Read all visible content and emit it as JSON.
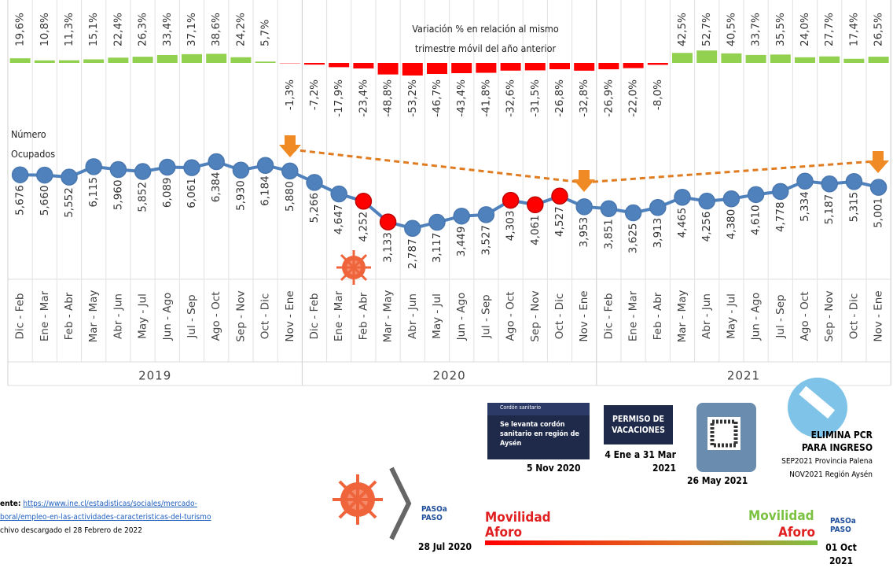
{
  "chart_data": {
    "type": "line",
    "categories": [
      "Dic - Feb",
      "Ene - Mar",
      "Feb - Abr",
      "Mar - May",
      "Abr - Jun",
      "May - Jul",
      "Jun - Ago",
      "Jul - Sep",
      "Ago - Oct",
      "Sep - Nov",
      "Oct - Dic",
      "Nov - Ene",
      "Dic - Feb",
      "Ene - Mar",
      "Feb - Abr",
      "Mar - May",
      "Abr - Jun",
      "May - Jul",
      "Jun - Ago",
      "Jul - Sep",
      "Ago - Oct",
      "Sep - Nov",
      "Oct - Dic",
      "Nov - Ene",
      "Dic - Feb",
      "Ene - Mar",
      "Feb - Abr",
      "Mar - May",
      "Abr - Jun",
      "May - Jul",
      "Jun - Ago",
      "Jul - Sep",
      "Ago - Oct",
      "Sep - Nov",
      "Oct - Dic",
      "Nov - Ene"
    ],
    "year_labels": [
      "2019",
      "2020",
      "2021"
    ],
    "ylim": [
      0,
      7000
    ],
    "y2lim": [
      -60,
      60
    ],
    "series": [
      {
        "name": "Variación % en relación al mismo trimestre móvil del año anterior",
        "type": "bar",
        "axis": "y2",
        "color": "#92d050",
        "negative_color": "#ff0000",
        "values": [
          19.6,
          10.8,
          11.3,
          15.1,
          22.4,
          26.3,
          33.4,
          37.1,
          38.6,
          24.2,
          5.7,
          -1.3,
          -7.2,
          -17.9,
          -23.4,
          -48.8,
          -53.2,
          -46.7,
          -43.4,
          -41.8,
          -32.6,
          -31.5,
          -26.8,
          -32.8,
          -26.9,
          -22.0,
          -8.0,
          42.5,
          52.7,
          40.5,
          33.7,
          35.5,
          24.0,
          27.7,
          17.4,
          26.5
        ],
        "value_labels": [
          "19,6%",
          "10,8%",
          "11,3%",
          "15,1%",
          "22,4%",
          "26,3%",
          "33,4%",
          "37,1%",
          "38,6%",
          "24,2%",
          "5,7%",
          "-1,3%",
          "-7,2%",
          "-17,9%",
          "-23,4%",
          "-48,8%",
          "-53,2%",
          "-46,7%",
          "-43,4%",
          "-41,8%",
          "-32,6%",
          "-31,5%",
          "-26,8%",
          "-32,8%",
          "-26,9%",
          "-22,0%",
          "-8,0%",
          "42,5%",
          "52,7%",
          "40,5%",
          "33,7%",
          "35,5%",
          "24,0%",
          "27,7%",
          "17,4%",
          "26,5%"
        ]
      },
      {
        "name": "Número Ocupados",
        "color": "#4f81bd",
        "values": [
          5676,
          5660,
          5552,
          6115,
          5960,
          5852,
          6089,
          6061,
          6384,
          5930,
          6184,
          5880,
          5266,
          4647,
          4252,
          3133,
          2787,
          3117,
          3449,
          3527,
          4303,
          4061,
          4527,
          3953,
          3851,
          3625,
          3913,
          4465,
          4256,
          4380,
          4610,
          4778,
          5334,
          5187,
          5315,
          5001
        ],
        "value_labels": [
          "5,676",
          "5,660",
          "5,552",
          "6,115",
          "5,960",
          "5,852",
          "6,089",
          "6,061",
          "6,384",
          "5,930",
          "6,184",
          "5,880",
          "5,266",
          "4,647",
          "4,252",
          "3,133",
          "2,787",
          "3,117",
          "3,449",
          "3,527",
          "4,303",
          "4,061",
          "4,527",
          "3,953",
          "3,851",
          "3,625",
          "3,913",
          "4,465",
          "4,256",
          "4,380",
          "4,610",
          "4,778",
          "5,334",
          "5,187",
          "5,315",
          "5,001"
        ],
        "marker_colors": [
          "#4f81bd",
          "#4f81bd",
          "#4f81bd",
          "#4f81bd",
          "#4f81bd",
          "#4f81bd",
          "#4f81bd",
          "#4f81bd",
          "#4f81bd",
          "#4f81bd",
          "#4f81bd",
          "#4f81bd",
          "#4f81bd",
          "#4f81bd",
          "#ff0000",
          "#ff0000",
          "#4f81bd",
          "#4f81bd",
          "#4f81bd",
          "#4f81bd",
          "#ff0000",
          "#ff0000",
          "#ff0000",
          "#4f81bd",
          "#4f81bd",
          "#4f81bd",
          "#4f81bd",
          "#4f81bd",
          "#4f81bd",
          "#4f81bd",
          "#4f81bd",
          "#4f81bd",
          "#4f81bd",
          "#4f81bd",
          "#4f81bd",
          "#4f81bd"
        ]
      }
    ]
  },
  "events": [
    {
      "box_title": "Cordón sanitario",
      "box_text": "Se levanta cordón sanitario en región de Aysén",
      "caption": "5 Nov 2020"
    },
    {
      "box_text": "PERMISO DE VACACIONES",
      "caption": "4 Ene a 31 Mar 2021"
    },
    {
      "caption": "26 May 2021"
    },
    {
      "title": "ELIMINA PCR PARA INGRESO",
      "lines": [
        "SEP2021 Provincia Palena",
        "NOV2021 Región Aysén"
      ]
    }
  ],
  "source": {
    "label": "ente:",
    "link_lines": [
      "https://www.ine.cl/estadisticas/sociales/mercado-",
      "boral/empleo-en-las-actividades-caracteristicas-del-turismo"
    ],
    "note": "chivo descargado el 28 Febrero de 2022"
  },
  "timeline": {
    "logo": "PASOa PASO",
    "start_date": "28 Jul 2020",
    "end_date": "01 Oct 2021",
    "left_words": [
      "Movilidad",
      "Aforo"
    ],
    "right_words": [
      "Movilidad",
      "Aforo"
    ]
  }
}
